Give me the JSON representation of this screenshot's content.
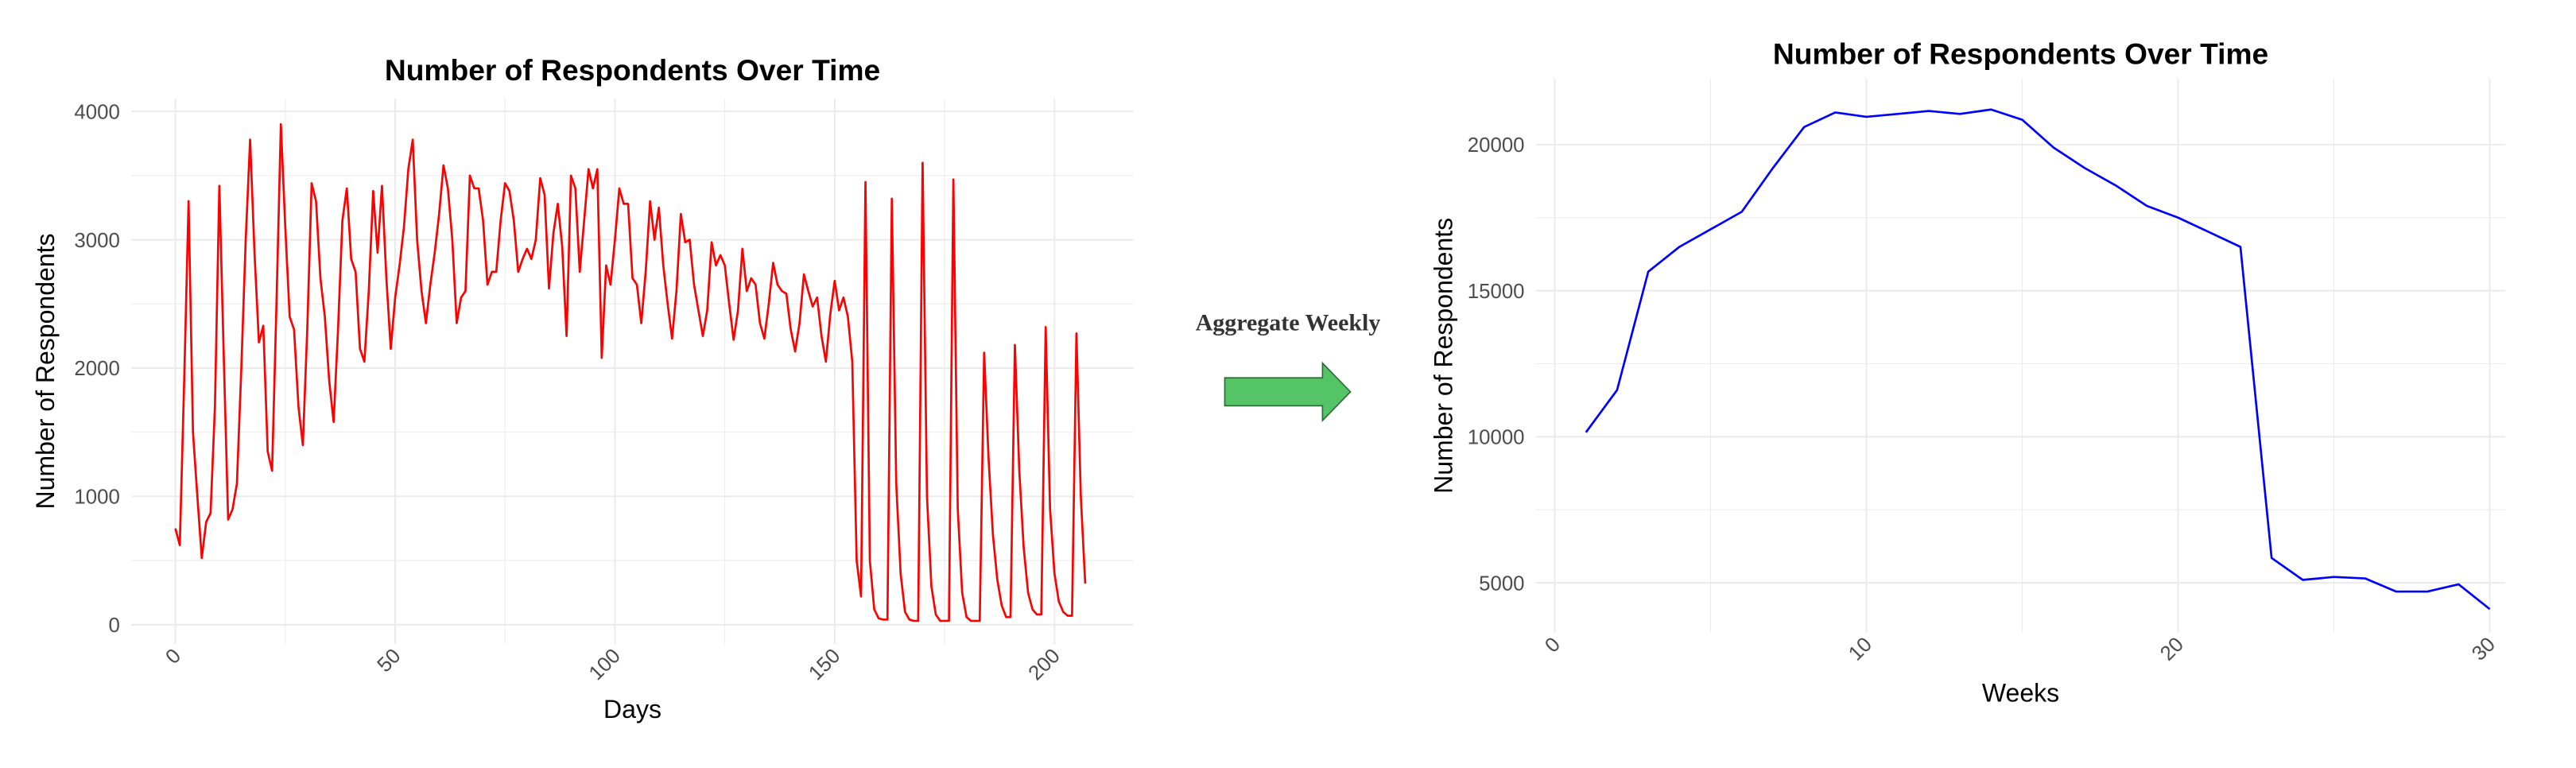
{
  "annotation": "Aggregate Weekly",
  "chart_data": [
    {
      "type": "line",
      "title": "Number of Respondents Over Time",
      "xlabel": "Days",
      "ylabel": "Number of Respondents",
      "color": "#ff0000",
      "grid": true,
      "x": [
        0,
        1,
        2,
        3,
        4,
        5,
        6,
        7,
        8,
        9,
        10,
        11,
        12,
        13,
        14,
        15,
        16,
        17,
        18,
        19,
        20,
        21,
        22,
        23,
        24,
        25,
        26,
        27,
        28,
        29,
        30,
        31,
        32,
        33,
        34,
        35,
        36,
        37,
        38,
        39,
        40,
        41,
        42,
        43,
        44,
        45,
        46,
        47,
        48,
        49,
        50,
        51,
        52,
        53,
        54,
        55,
        56,
        57,
        58,
        59,
        60,
        61,
        62,
        63,
        64,
        65,
        66,
        67,
        68,
        69,
        70,
        71,
        72,
        73,
        74,
        75,
        76,
        77,
        78,
        79,
        80,
        81,
        82,
        83,
        84,
        85,
        86,
        87,
        88,
        89,
        90,
        91,
        92,
        93,
        94,
        95,
        96,
        97,
        98,
        99,
        100,
        101,
        102,
        103,
        104,
        105,
        106,
        107,
        108,
        109,
        110,
        111,
        112,
        113,
        114,
        115,
        116,
        117,
        118,
        119,
        120,
        121,
        122,
        123,
        124,
        125,
        126,
        127,
        128,
        129,
        130,
        131,
        132,
        133,
        134,
        135,
        136,
        137,
        138,
        139,
        140,
        141,
        142,
        143,
        144,
        145,
        146,
        147,
        148,
        149,
        150,
        151,
        152,
        153,
        154,
        155,
        156,
        157,
        158,
        159,
        160,
        161,
        162,
        163,
        164,
        165,
        166,
        167,
        168,
        169,
        170,
        171,
        172,
        173,
        174,
        175,
        176,
        177,
        178,
        179,
        180,
        181,
        182,
        183,
        184,
        185,
        186,
        187,
        188,
        189,
        190,
        191,
        192,
        193,
        194,
        195,
        196,
        197,
        198,
        199,
        200,
        201,
        202,
        203,
        204,
        205,
        206,
        207
      ],
      "values": [
        750,
        620,
        1900,
        3300,
        1500,
        1000,
        520,
        800,
        870,
        1700,
        3420,
        2100,
        820,
        900,
        1100,
        2000,
        3000,
        3780,
        2900,
        2200,
        2330,
        1350,
        1200,
        2500,
        3900,
        3100,
        2400,
        2300,
        1700,
        1400,
        2300,
        3440,
        3300,
        2700,
        2400,
        1900,
        1580,
        2300,
        3150,
        3400,
        2850,
        2750,
        2150,
        2050,
        2600,
        3380,
        2900,
        3420,
        2700,
        2150,
        2550,
        2800,
        3100,
        3550,
        3780,
        3000,
        2600,
        2350,
        2650,
        2900,
        3200,
        3580,
        3400,
        3000,
        2350,
        2550,
        2600,
        3500,
        3400,
        3400,
        3150,
        2650,
        2750,
        2750,
        3150,
        3440,
        3380,
        3150,
        2750,
        2850,
        2930,
        2850,
        3000,
        3480,
        3350,
        2620,
        3050,
        3280,
        2950,
        2250,
        3500,
        3400,
        2750,
        3150,
        3550,
        3400,
        3550,
        2080,
        2800,
        2650,
        3000,
        3400,
        3280,
        3280,
        2700,
        2650,
        2350,
        2750,
        3300,
        3000,
        3250,
        2800,
        2500,
        2230,
        2600,
        3200,
        2980,
        3000,
        2650,
        2450,
        2250,
        2450,
        2980,
        2800,
        2880,
        2800,
        2500,
        2220,
        2450,
        2930,
        2600,
        2700,
        2650,
        2350,
        2230,
        2500,
        2820,
        2650,
        2600,
        2580,
        2300,
        2130,
        2350,
        2730,
        2600,
        2480,
        2550,
        2250,
        2050,
        2420,
        2680,
        2450,
        2550,
        2400,
        2050,
        500,
        220,
        3450,
        500,
        120,
        50,
        40,
        40,
        3320,
        1100,
        400,
        100,
        40,
        30,
        30,
        3600,
        1000,
        300,
        80,
        30,
        30,
        30,
        3470,
        900,
        250,
        60,
        30,
        30,
        30,
        2120,
        1300,
        700,
        350,
        150,
        60,
        60,
        2180,
        1200,
        600,
        250,
        120,
        80,
        80,
        2320,
        900,
        400,
        180,
        100,
        70,
        70,
        2270,
        1000,
        320
      ],
      "xlim": [
        -10,
        218
      ],
      "xticks": [
        0,
        50,
        100,
        150,
        200
      ],
      "ylim": [
        -150,
        4100
      ],
      "yticks": [
        0,
        1000,
        2000,
        3000,
        4000
      ]
    },
    {
      "type": "line",
      "title": "Number of Respondents Over Time",
      "xlabel": "Weeks",
      "ylabel": "Number of Respondents",
      "color": "#0000ff",
      "grid": true,
      "x": [
        1,
        2,
        3,
        4,
        5,
        6,
        7,
        8,
        9,
        10,
        11,
        12,
        13,
        14,
        15,
        16,
        17,
        18,
        19,
        20,
        21,
        22,
        23,
        24,
        25,
        26,
        27,
        28,
        29,
        30
      ],
      "values": [
        10150,
        11600,
        15650,
        16500,
        17100,
        17700,
        19200,
        20600,
        21100,
        20950,
        21050,
        21150,
        21050,
        21200,
        20850,
        19900,
        19200,
        18600,
        17900,
        17500,
        17000,
        16500,
        5850,
        5100,
        5200,
        5150,
        4700,
        4700,
        4950,
        4100
      ],
      "xlim": [
        -0.6,
        30.5
      ],
      "xticks": [
        0,
        10,
        20,
        30
      ],
      "ylim": [
        3300,
        22250
      ],
      "yticks": [
        5000,
        10000,
        15000,
        20000
      ]
    }
  ]
}
